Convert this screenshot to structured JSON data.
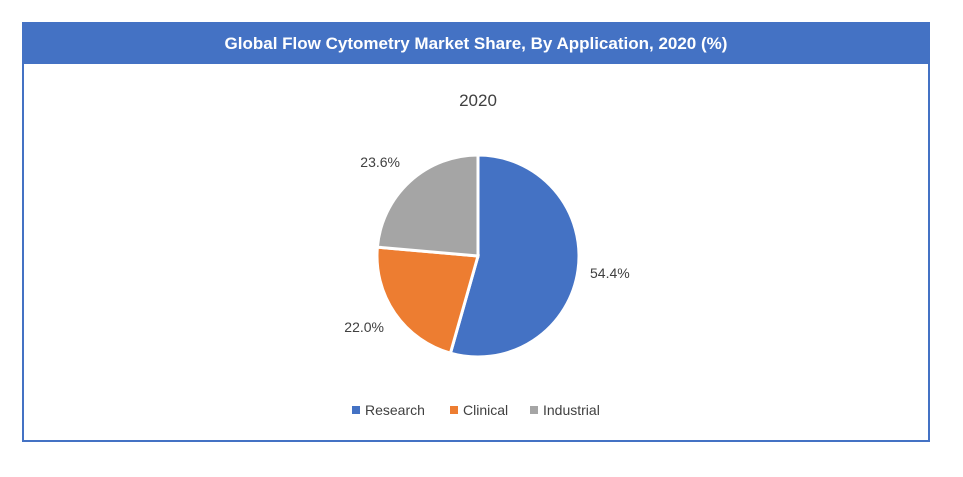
{
  "header": {
    "title": "Global Flow Cytometry Market Share, By Application, 2020 (%)"
  },
  "colors": {
    "banner": "#4472C4",
    "border": "#4472C4"
  },
  "chart_data": {
    "type": "pie",
    "title": "2020",
    "categories": [
      "Research",
      "Clinical",
      "Industrial"
    ],
    "values": [
      54.4,
      22.0,
      23.6
    ],
    "labels": [
      "54.4%",
      "22.0%",
      "23.6%"
    ],
    "colors": [
      "#4472C4",
      "#ED7D31",
      "#A5A5A5"
    ],
    "legend": "bottom"
  }
}
